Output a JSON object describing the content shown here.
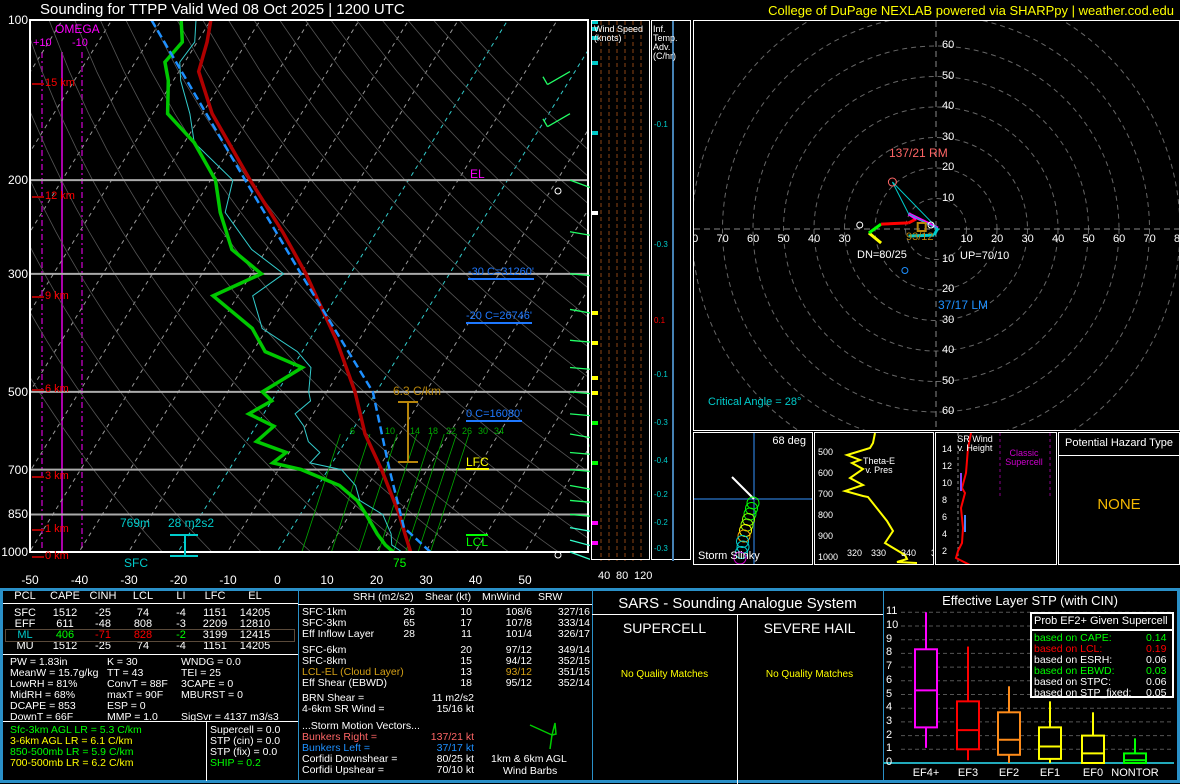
{
  "header": {
    "title": "Sounding for TTPP Valid  Wed 08 Oct 2025 | 1200 UTC",
    "credit": "College of DuPage NEXLAB powered via SHARPpy | weather.cod.edu"
  },
  "colors": {
    "temp": "#b00000",
    "dewpoint": "#00c800",
    "parcel": "#1e90ff",
    "accent_blue": "#2a90c8",
    "credit": "#ffff00"
  },
  "skewt": {
    "pressure_labels": [
      "100",
      "200",
      "300",
      "500",
      "700",
      "850",
      "1000"
    ],
    "temp_labels": [
      "-50",
      "-40",
      "-30",
      "-20",
      "-10",
      "0",
      "10",
      "20",
      "30",
      "40",
      "50"
    ],
    "height_labels": [
      "15 km",
      "12 km",
      "9 km",
      "6 km",
      "3 km",
      "1 km",
      "0 km"
    ],
    "omega": {
      "title": "OMEGA",
      "plus": "+10",
      "minus": "-10"
    },
    "el": "EL",
    "lfc": "LFC",
    "lcl": "LCL",
    "frz_30": "-30 C=31260'",
    "frz_20": "-20 C=26746'",
    "frz_0": "0 C=16080'",
    "lapse": "6.3 C/km",
    "eff_depth": "769m",
    "eff_srh": "28 m2s2",
    "sfc": "SFC",
    "sfc_dewpoint": "75",
    "mixing_ratios": [
      "6",
      "10",
      "14",
      "18",
      "22",
      "26",
      "30",
      "34"
    ]
  },
  "chart_data": {
    "type": "line",
    "title": "Skew-T log-P",
    "ylim": [
      1000,
      100
    ],
    "xlim": [
      -50,
      50
    ],
    "temperature": [
      [
        1000,
        27
      ],
      [
        925,
        23.6
      ],
      [
        850,
        20
      ],
      [
        700,
        10.8
      ],
      [
        600,
        3
      ],
      [
        500,
        -4.3
      ],
      [
        400,
        -14.5
      ],
      [
        300,
        -29
      ],
      [
        250,
        -39
      ],
      [
        200,
        -52
      ],
      [
        150,
        -68
      ],
      [
        125,
        -76
      ],
      [
        110,
        -78
      ],
      [
        100,
        -80
      ]
    ],
    "dewpoint": [
      [
        1000,
        23.5
      ],
      [
        970,
        21
      ],
      [
        925,
        18
      ],
      [
        850,
        13.3
      ],
      [
        800,
        9.7
      ],
      [
        750,
        4.3
      ],
      [
        700,
        -5.4
      ],
      [
        680,
        -12
      ],
      [
        650,
        -10.6
      ],
      [
        620,
        -18
      ],
      [
        580,
        -16.4
      ],
      [
        550,
        -23
      ],
      [
        520,
        -20
      ],
      [
        500,
        -23
      ],
      [
        450,
        -18
      ],
      [
        420,
        -27.5
      ],
      [
        380,
        -33
      ],
      [
        330,
        -45
      ],
      [
        300,
        -38
      ],
      [
        270,
        -47
      ],
      [
        230,
        -54
      ],
      [
        200,
        -59
      ],
      [
        170,
        -68
      ],
      [
        150,
        -77
      ],
      [
        130,
        -81
      ],
      [
        120,
        -84
      ],
      [
        110,
        -83
      ],
      [
        100,
        -86
      ]
    ],
    "parcel": [
      [
        1000,
        31
      ],
      [
        900,
        22.6
      ],
      [
        700,
        12.4
      ],
      [
        500,
        -0.7
      ],
      [
        300,
        -30
      ],
      [
        200,
        -53
      ],
      [
        100,
        -92
      ]
    ],
    "winds": [
      [
        1000,
        110,
        5
      ],
      [
        950,
        105,
        6
      ],
      [
        900,
        100,
        8
      ],
      [
        850,
        95,
        10
      ],
      [
        800,
        95,
        12
      ],
      [
        750,
        100,
        12
      ],
      [
        700,
        95,
        14
      ],
      [
        650,
        95,
        15
      ],
      [
        600,
        100,
        16
      ],
      [
        550,
        95,
        15
      ],
      [
        500,
        95,
        14
      ],
      [
        450,
        95,
        13
      ],
      [
        400,
        95,
        12
      ],
      [
        350,
        100,
        12
      ],
      [
        300,
        95,
        10
      ],
      [
        250,
        100,
        8
      ],
      [
        200,
        110,
        6
      ],
      [
        150,
        240,
        10
      ],
      [
        125,
        240,
        12
      ]
    ]
  },
  "wind_col": {
    "title": "Wind Speed (knots)",
    "ticks": [
      "40",
      "80",
      "120"
    ]
  },
  "adv_col": {
    "title": "Inf. Temp. Adv. (C/hr)",
    "values": [
      "-0.1",
      "-0.3",
      "0.1",
      "-0.1",
      "-0.3",
      "-0.4",
      "-0.2",
      "-0.2",
      "-0.3"
    ]
  },
  "hodo": {
    "rm": "137/21 RM",
    "lm": "37/17 LM",
    "dn": "DN=80/25",
    "up": "UP=70/10",
    "mean": "93/12",
    "critical_angle": "Critical Angle = 28°",
    "trace": [
      [
        -18,
        -4.6
      ],
      [
        -22,
        -1.3
      ],
      [
        -18,
        1.6
      ],
      [
        -9,
        2
      ],
      [
        -6.5,
        3.3
      ],
      [
        -9,
        5
      ],
      [
        0.6,
        0.3
      ],
      [
        -0.6,
        -2
      ],
      [
        -9,
        -2.3
      ]
    ],
    "rm_uv": [
      -14.3,
      15.4
    ],
    "lm_uv": [
      -10.2,
      -13.6
    ]
  },
  "slinky": {
    "deg": "68 deg",
    "label": "Storm Slinky"
  },
  "thetae": {
    "label": "Theta-E v. Pres",
    "p": [
      "500",
      "600",
      "700",
      "800",
      "900",
      "1000"
    ],
    "x": [
      "320",
      "330",
      "340",
      "350"
    ]
  },
  "srwind": {
    "label": "SR Wind v. Height",
    "h": [
      "2",
      "4",
      "6",
      "8",
      "10",
      "12",
      "14"
    ],
    "classic": "Classic Supercell"
  },
  "hazard": {
    "title": "Potential Hazard Type",
    "value": "NONE"
  },
  "thermo": {
    "headers": [
      "PCL",
      "CAPE",
      "CINH",
      "LCL",
      "LI",
      "LFC",
      "EL"
    ],
    "rows": [
      [
        "SFC",
        "1512",
        "-25",
        "74",
        "-4",
        "1151",
        "14205"
      ],
      [
        "EFF",
        "611",
        "-48",
        "808",
        "-3",
        "2209",
        "12810"
      ],
      [
        "ML",
        "406",
        "-71",
        "828",
        "-2",
        "3199",
        "12415"
      ],
      [
        "MU",
        "1512",
        "-25",
        "74",
        "-4",
        "1151",
        "14205"
      ]
    ],
    "indices": [
      [
        "PW = 1.83in",
        "K = 30",
        "WNDG = 0.0"
      ],
      [
        "MeanW = 15.7g/kg",
        "TT = 43",
        "TEI = 25"
      ],
      [
        "LowRH = 81%",
        "ConvT = 88F",
        "3CAPE = 0"
      ],
      [
        "MidRH = 68%",
        "maxT = 90F",
        "MBURST = 0"
      ],
      [
        "DCAPE = 853",
        "ESP = 0",
        ""
      ],
      [
        "DownT = 66F",
        "MMP = 1.0",
        "SigSvr = 4137 m3/s3"
      ]
    ],
    "lapse": [
      "Sfc-3km AGL LR = 5.3 C/km",
      "3-6km AGL LR = 6.1 C/km",
      "850-500mb LR = 5.9 C/km",
      "700-500mb LR = 6.2 C/km"
    ],
    "composite": [
      "Supercell = 0.0",
      "STP (cin) = 0.0",
      "STP (fix) = 0.0",
      "SHIP = 0.2"
    ]
  },
  "kinem": {
    "headers": [
      "SRH (m2/s2)",
      "Shear (kt)",
      "MnWind",
      "SRW"
    ],
    "rows": [
      [
        "SFC-1km",
        "26",
        "10",
        "108/6",
        "327/16"
      ],
      [
        "SFC-3km",
        "65",
        "17",
        "107/8",
        "333/14"
      ],
      [
        "Eff Inflow Layer",
        "28",
        "11",
        "101/4",
        "326/17"
      ],
      [
        "SFC-6km",
        "",
        "20",
        "97/12",
        "349/14"
      ],
      [
        "SFC-8km",
        "",
        "15",
        "94/12",
        "352/15"
      ],
      [
        "LCL-EL (Cloud Layer)",
        "",
        "13",
        "93/12",
        "351/15"
      ],
      [
        "Eff Shear (EBWD)",
        "",
        "18",
        "95/12",
        "352/14"
      ]
    ],
    "brn": [
      "BRN Shear =",
      "11 m2/s2"
    ],
    "sr46": [
      "4-6km SR Wind =",
      "15/16 kt"
    ],
    "storm_title": "...Storm Motion Vectors...",
    "motions": [
      [
        "Bunkers Right =",
        "137/21 kt"
      ],
      [
        "Bunkers Left =",
        "37/17 kt"
      ],
      [
        "Corfidi Downshear =",
        "80/25 kt"
      ],
      [
        "Corfidi Upshear =",
        "70/10 kt"
      ]
    ],
    "barbs_label1": "1km & 6km AGL",
    "barbs_label2": "Wind Barbs"
  },
  "sars": {
    "title": "SARS - Sounding Analogue System",
    "supercell": "SUPERCELL",
    "hail": "SEVERE HAIL",
    "sc_result": "No Quality Matches",
    "hail_result": "No Quality Matches"
  },
  "stp": {
    "title": "Effective Layer STP (with CIN)",
    "yticks": [
      "0",
      "1",
      "2",
      "3",
      "4",
      "5",
      "6",
      "7",
      "8",
      "9",
      "10",
      "11"
    ],
    "boxes": [
      {
        "label": "EF4+",
        "color": "#ff00ff",
        "lo": 1.1,
        "q1": 2.6,
        "med": 5.3,
        "q3": 8.3,
        "hi": 11
      },
      {
        "label": "EF3",
        "color": "#ff0000",
        "lo": 0.2,
        "q1": 1.0,
        "med": 2.4,
        "q3": 4.5,
        "hi": 8.5
      },
      {
        "label": "EF2",
        "color": "#ff8c1a",
        "lo": 0,
        "q1": 0.6,
        "med": 1.7,
        "q3": 3.7,
        "hi": 5.6
      },
      {
        "label": "EF1",
        "color": "#ffff00",
        "lo": 0,
        "q1": 0.3,
        "med": 1.2,
        "q3": 2.6,
        "hi": 4.5
      },
      {
        "label": "EF0",
        "color": "#ffff00",
        "lo": 0,
        "q1": 0.0,
        "med": 0.7,
        "q3": 2.0,
        "hi": 3.7
      },
      {
        "label": "NONTOR",
        "color": "#00ff00",
        "lo": 0,
        "q1": 0,
        "med": 0.2,
        "q3": 0.7,
        "hi": 1.8
      }
    ],
    "prob_title": "Prob EF2+ Given Supercell",
    "prob": [
      [
        "based on CAPE:",
        "0.14",
        "#00ff00"
      ],
      [
        "based on LCL:",
        "0.19",
        "#ff0000"
      ],
      [
        "based on ESRH:",
        "0.06",
        "#ffffff"
      ],
      [
        "based on EBWD:",
        "0.03",
        "#00ff00"
      ],
      [
        "based on STPC:",
        "0.06",
        "#ffffff"
      ],
      [
        "based on STP_fixed:",
        "0.05",
        "#ffffff"
      ]
    ]
  }
}
